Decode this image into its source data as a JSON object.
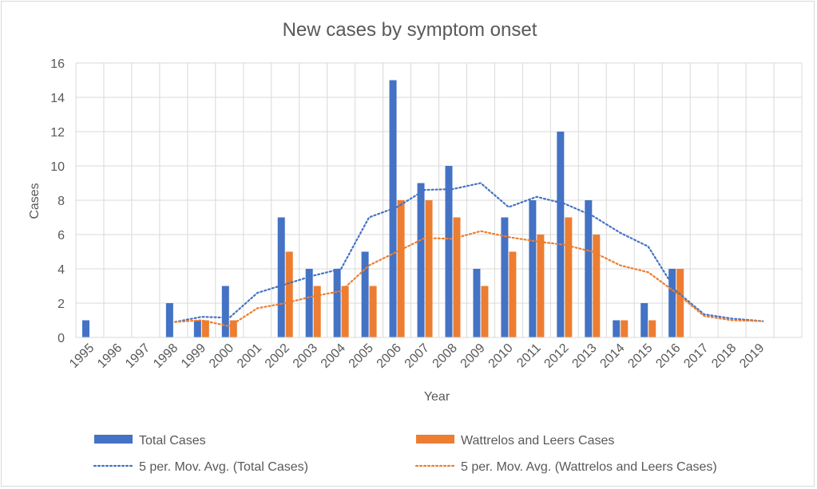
{
  "chart_data": {
    "type": "bar",
    "title": "New cases by symptom onset",
    "xlabel": "Year",
    "ylabel": "Cases",
    "ylim": [
      0,
      16
    ],
    "yticks": [
      0,
      2,
      4,
      6,
      8,
      10,
      12,
      14,
      16
    ],
    "grid": true,
    "legend_position": "bottom",
    "categories": [
      "1995",
      "1996",
      "1997",
      "1998",
      "1999",
      "2000",
      "2001",
      "2002",
      "2003",
      "2004",
      "2005",
      "2006",
      "2007",
      "2008",
      "2009",
      "2010",
      "2011",
      "2012",
      "2013",
      "2014",
      "2015",
      "2016",
      "2017",
      "2018",
      "2019"
    ],
    "series": [
      {
        "name": "Total Cases",
        "color": "#4472C4",
        "values": [
          1,
          0,
          0,
          2,
          1,
          3,
          0,
          7,
          4,
          4,
          5,
          15,
          9,
          10,
          4,
          7,
          8,
          12,
          8,
          1,
          2,
          4,
          0,
          0,
          0
        ]
      },
      {
        "name": "Wattrelos and Leers Cases",
        "color": "#ED7D31",
        "values": [
          0,
          0,
          0,
          0,
          1,
          1,
          0,
          5,
          3,
          3,
          3,
          8,
          8,
          7,
          3,
          5,
          6,
          7,
          6,
          1,
          1,
          4,
          0,
          0,
          0
        ]
      }
    ],
    "trendlines": [
      {
        "name": "5 per. Mov. Avg. (Total Cases)",
        "color": "#4472C4",
        "style": "dotted",
        "x": [
          4.05,
          5,
          6,
          7,
          8,
          9,
          10,
          11,
          12,
          13,
          14,
          15,
          16,
          17,
          18,
          19,
          20,
          21,
          22,
          23,
          24,
          25.1
        ],
        "values": [
          0.9,
          1.2,
          1.15,
          2.6,
          3.1,
          3.6,
          4.0,
          7.0,
          7.6,
          8.6,
          8.65,
          9.0,
          7.6,
          8.2,
          7.8,
          7.1,
          6.1,
          5.3,
          2.7,
          1.35,
          1.1,
          0.95
        ]
      },
      {
        "name": "5 per. Mov. Avg. (Wattrelos and Leers Cases)",
        "color": "#ED7D31",
        "style": "dotted",
        "x": [
          4.05,
          5,
          6,
          7,
          8,
          9,
          10,
          11,
          12,
          13,
          14,
          15,
          16,
          17,
          18,
          19,
          20,
          21,
          22,
          23,
          24,
          25.1
        ],
        "values": [
          0.9,
          1.0,
          0.65,
          1.7,
          2.0,
          2.4,
          2.7,
          4.2,
          5.0,
          5.8,
          5.75,
          6.2,
          5.85,
          5.6,
          5.4,
          5.0,
          4.2,
          3.8,
          2.6,
          1.25,
          1.0,
          0.95
        ]
      }
    ]
  }
}
